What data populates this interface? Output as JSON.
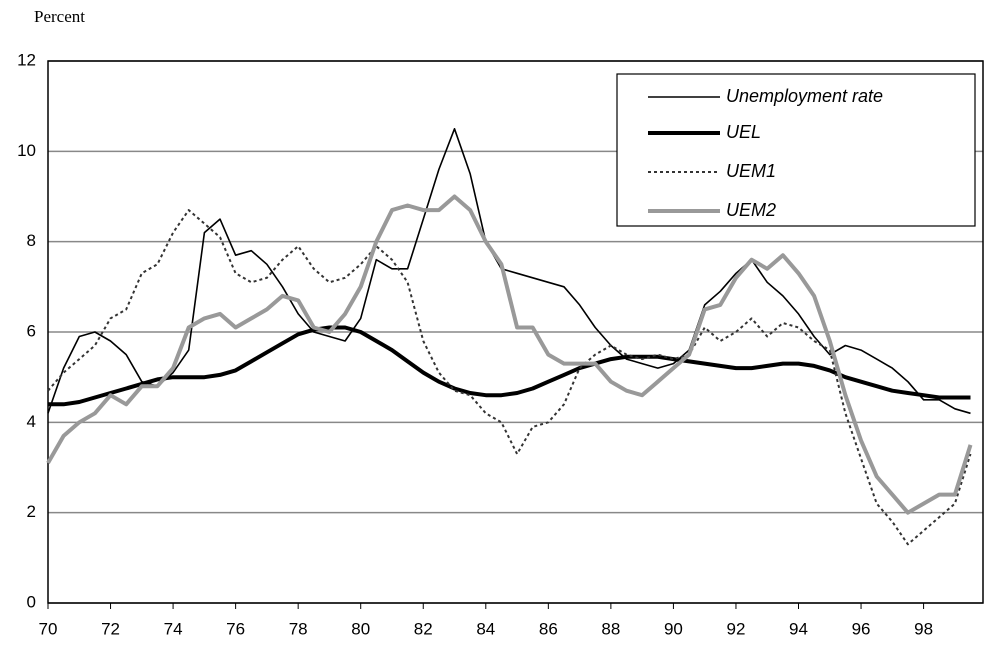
{
  "chart_data": {
    "type": "line",
    "y_label": "Percent",
    "x": [
      70,
      70.5,
      71,
      71.5,
      72,
      72.5,
      73,
      73.5,
      74,
      74.5,
      75,
      75.5,
      76,
      76.5,
      77,
      77.5,
      78,
      78.5,
      79,
      79.5,
      80,
      80.5,
      81,
      81.5,
      82,
      82.5,
      83,
      83.5,
      84,
      84.5,
      85,
      85.5,
      86,
      86.5,
      87,
      87.5,
      88,
      88.5,
      89,
      89.5,
      90,
      90.5,
      91,
      91.5,
      92,
      92.5,
      93,
      93.5,
      94,
      94.5,
      95,
      95.5,
      96,
      96.5,
      97,
      97.5,
      98,
      98.5,
      99,
      99.5
    ],
    "series": [
      {
        "name": "Unemployment rate",
        "color": "#000000",
        "values": [
          4.2,
          5.2,
          5.9,
          6.0,
          5.8,
          5.5,
          4.9,
          4.8,
          5.1,
          5.6,
          8.2,
          8.5,
          7.7,
          7.8,
          7.5,
          7.0,
          6.4,
          6.0,
          5.9,
          5.8,
          6.3,
          7.6,
          7.4,
          7.4,
          8.5,
          9.6,
          10.5,
          9.5,
          8.0,
          7.4,
          7.3,
          7.2,
          7.1,
          7.0,
          6.6,
          6.1,
          5.7,
          5.4,
          5.3,
          5.2,
          5.3,
          5.6,
          6.6,
          6.9,
          7.3,
          7.6,
          7.1,
          6.8,
          6.4,
          5.9,
          5.5,
          5.7,
          5.6,
          5.4,
          5.2,
          4.9,
          4.5,
          4.5,
          4.3,
          4.2
        ]
      },
      {
        "name": "UEL",
        "color": "#000000",
        "values": [
          4.4,
          4.4,
          4.45,
          4.55,
          4.65,
          4.75,
          4.85,
          4.95,
          5.0,
          5.0,
          5.0,
          5.05,
          5.15,
          5.35,
          5.55,
          5.75,
          5.95,
          6.05,
          6.1,
          6.1,
          6.0,
          5.8,
          5.6,
          5.35,
          5.1,
          4.9,
          4.75,
          4.65,
          4.6,
          4.6,
          4.65,
          4.75,
          4.9,
          5.05,
          5.2,
          5.3,
          5.4,
          5.45,
          5.45,
          5.45,
          5.4,
          5.35,
          5.3,
          5.25,
          5.2,
          5.2,
          5.25,
          5.3,
          5.3,
          5.25,
          5.15,
          5.0,
          4.9,
          4.8,
          4.7,
          4.65,
          4.6,
          4.55,
          4.55,
          4.55
        ]
      },
      {
        "name": "UEM1",
        "color": "#333333",
        "values": [
          4.7,
          5.1,
          5.4,
          5.7,
          6.3,
          6.5,
          7.3,
          7.5,
          8.2,
          8.7,
          8.4,
          8.1,
          7.3,
          7.1,
          7.2,
          7.6,
          7.9,
          7.4,
          7.1,
          7.2,
          7.5,
          7.9,
          7.6,
          7.1,
          5.8,
          5.1,
          4.7,
          4.6,
          4.2,
          4.0,
          3.3,
          3.9,
          4.0,
          4.4,
          5.2,
          5.5,
          5.7,
          5.5,
          5.4,
          5.5,
          5.4,
          5.5,
          6.1,
          5.8,
          6.0,
          6.3,
          5.9,
          6.2,
          6.1,
          5.8,
          5.6,
          4.2,
          3.2,
          2.2,
          1.8,
          1.3,
          1.6,
          1.9,
          2.2,
          3.3
        ]
      },
      {
        "name": "UEM2",
        "color": "#999999",
        "values": [
          3.1,
          3.7,
          4.0,
          4.2,
          4.6,
          4.4,
          4.8,
          4.8,
          5.2,
          6.1,
          6.3,
          6.4,
          6.1,
          6.3,
          6.5,
          6.8,
          6.7,
          6.1,
          6.0,
          6.4,
          7.0,
          8.0,
          8.7,
          8.8,
          8.7,
          8.7,
          9.0,
          8.7,
          8.0,
          7.5,
          6.1,
          6.1,
          5.5,
          5.3,
          5.3,
          5.3,
          4.9,
          4.7,
          4.6,
          4.9,
          5.2,
          5.5,
          6.5,
          6.6,
          7.2,
          7.6,
          7.4,
          7.7,
          7.3,
          6.8,
          5.8,
          4.6,
          3.6,
          2.8,
          2.4,
          2.0,
          2.2,
          2.4,
          2.4,
          3.5
        ]
      }
    ],
    "xlim": [
      70,
      99.9
    ],
    "xticks": [
      70,
      72,
      74,
      76,
      78,
      80,
      82,
      84,
      86,
      88,
      90,
      92,
      94,
      96,
      98
    ],
    "ylim": [
      0,
      12
    ],
    "yticks": [
      0,
      2,
      4,
      6,
      8,
      10,
      12
    ],
    "grid": true
  }
}
